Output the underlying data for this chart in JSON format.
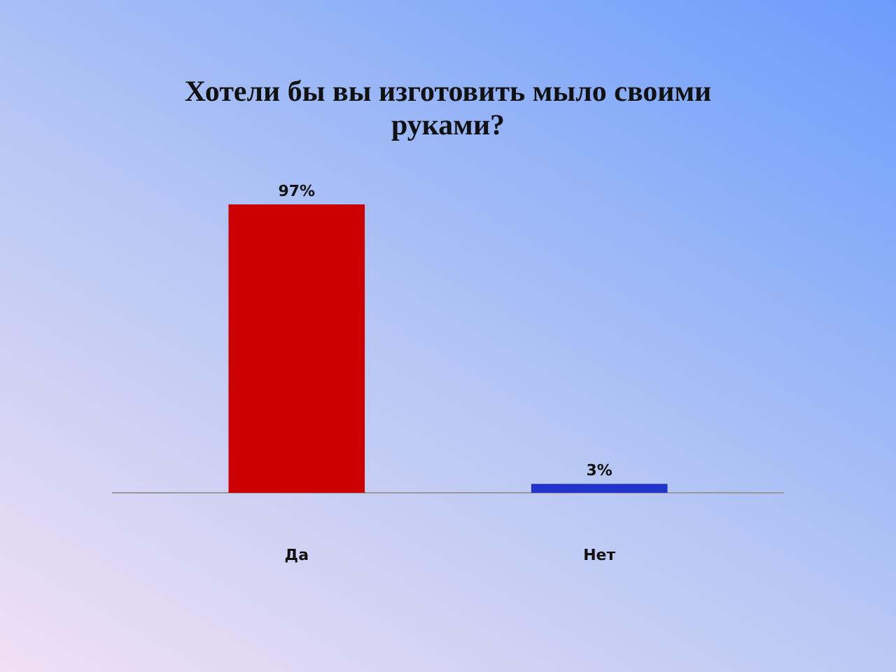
{
  "chart_data": {
    "type": "bar",
    "title": "Хотели бы вы изготовить мыло своими руками?",
    "categories": [
      "Да",
      "Нет"
    ],
    "values": [
      97,
      3
    ],
    "colors": [
      "#cc0000",
      "#2233cc"
    ],
    "value_labels": [
      "97%",
      "3%"
    ]
  }
}
